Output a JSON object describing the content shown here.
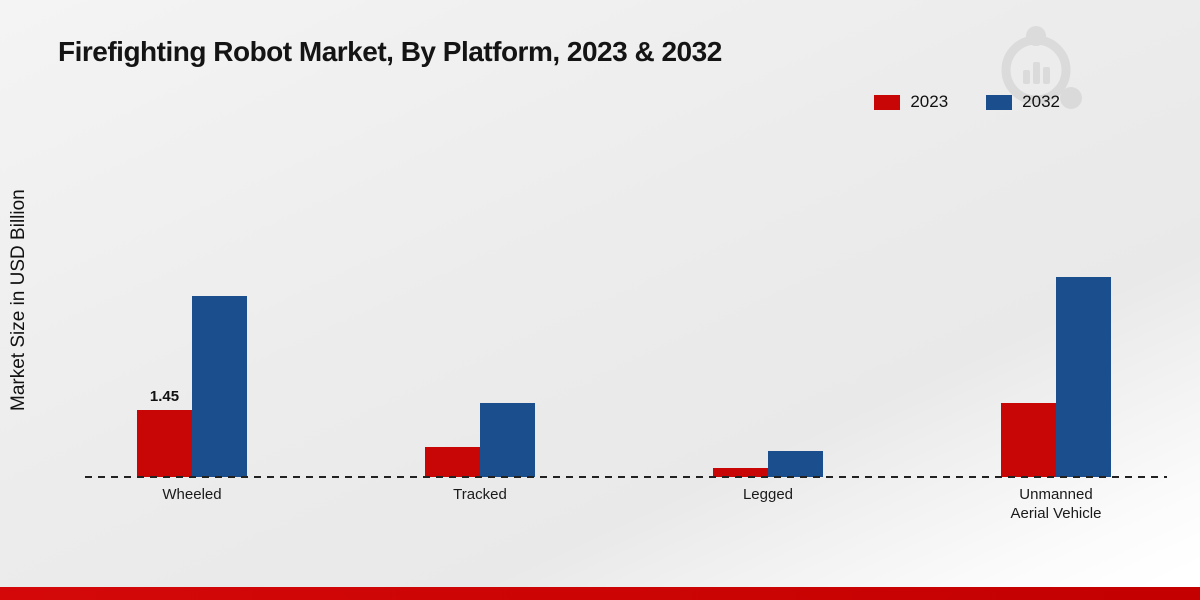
{
  "header": {
    "title": "Firefighting Robot Market, By Platform, 2023 & 2032"
  },
  "watermark": {
    "name": "brand-logo-watermark",
    "color": "#d7d7d7"
  },
  "chart_data": {
    "type": "bar",
    "title": "Firefighting Robot Market, By Platform, 2023 & 2032",
    "xlabel": "",
    "ylabel": "Market Size in USD Billion",
    "categories": [
      "Wheeled",
      "Tracked",
      "Legged",
      "Unmanned Aerial Vehicle"
    ],
    "series": [
      {
        "name": "2023",
        "color": "#c80606",
        "values": [
          1.45,
          0.65,
          0.2,
          1.6
        ]
      },
      {
        "name": "2032",
        "color": "#1a4e8c",
        "values": [
          3.9,
          1.6,
          0.55,
          4.3
        ]
      }
    ],
    "annotations": [
      {
        "series_index": 0,
        "category_index": 0,
        "text": "1.45"
      }
    ],
    "ylim": [
      0,
      4.5
    ],
    "grid": false,
    "axis_style": "dashed-baseline",
    "legend_position": "top-right",
    "accent_colors": {
      "red_2023": "#c80606",
      "blue_2032": "#1a4e8c",
      "footer_red": "#c40000"
    }
  }
}
